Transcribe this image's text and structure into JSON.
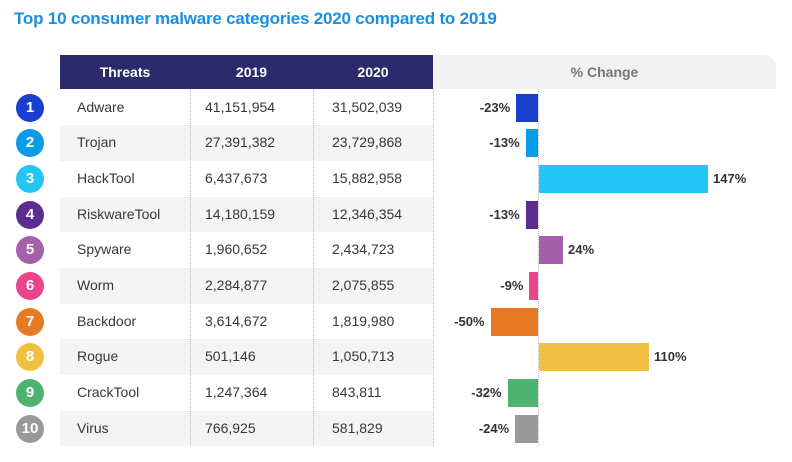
{
  "title": "Top 10 consumer malware categories 2020 compared to 2019",
  "chart_data": {
    "type": "table",
    "title": "Top 10 consumer malware categories 2020 compared to 2019",
    "columns": [
      "Threats",
      "2019",
      "2020",
      "% Change"
    ],
    "rows": [
      {
        "rank": "1",
        "threat": "Adware",
        "y2019": "41,151,954",
        "y2020": "31,502,039",
        "change": -23,
        "change_label": "-23%",
        "color": "#1a3fcf"
      },
      {
        "rank": "2",
        "threat": "Trojan",
        "y2019": "27,391,382",
        "y2020": "23,729,868",
        "change": -13,
        "change_label": "-13%",
        "color": "#0a9be8"
      },
      {
        "rank": "3",
        "threat": "HackTool",
        "y2019": "6,437,673",
        "y2020": "15,882,958",
        "change": 147,
        "change_label": "147%",
        "color": "#22c5f5"
      },
      {
        "rank": "4",
        "threat": "RiskwareTool",
        "y2019": "14,180,159",
        "y2020": "12,346,354",
        "change": -13,
        "change_label": "-13%",
        "color": "#5c2d91"
      },
      {
        "rank": "5",
        "threat": "Spyware",
        "y2019": "1,960,652",
        "y2020": "2,434,723",
        "change": 24,
        "change_label": "24%",
        "color": "#a460a8"
      },
      {
        "rank": "6",
        "threat": "Worm",
        "y2019": "2,284,877",
        "y2020": "2,075,855",
        "change": -9,
        "change_label": "-9%",
        "color": "#e8458b"
      },
      {
        "rank": "7",
        "threat": "Backdoor",
        "y2019": "3,614,672",
        "y2020": "1,819,980",
        "change": -50,
        "change_label": "-50%",
        "color": "#e97a25"
      },
      {
        "rank": "8",
        "threat": "Rogue",
        "y2019": "501,146",
        "y2020": "1,050,713",
        "change": 110,
        "change_label": "110%",
        "color": "#f0c044"
      },
      {
        "rank": "9",
        "threat": "CrackTool",
        "y2019": "1,247,364",
        "y2020": "843,811",
        "change": -32,
        "change_label": "-32%",
        "color": "#4fb36f"
      },
      {
        "rank": "10",
        "threat": "Virus",
        "y2019": "766,925",
        "y2020": "581,829",
        "change": -24,
        "change_label": "-24%",
        "color": "#999999"
      }
    ]
  }
}
